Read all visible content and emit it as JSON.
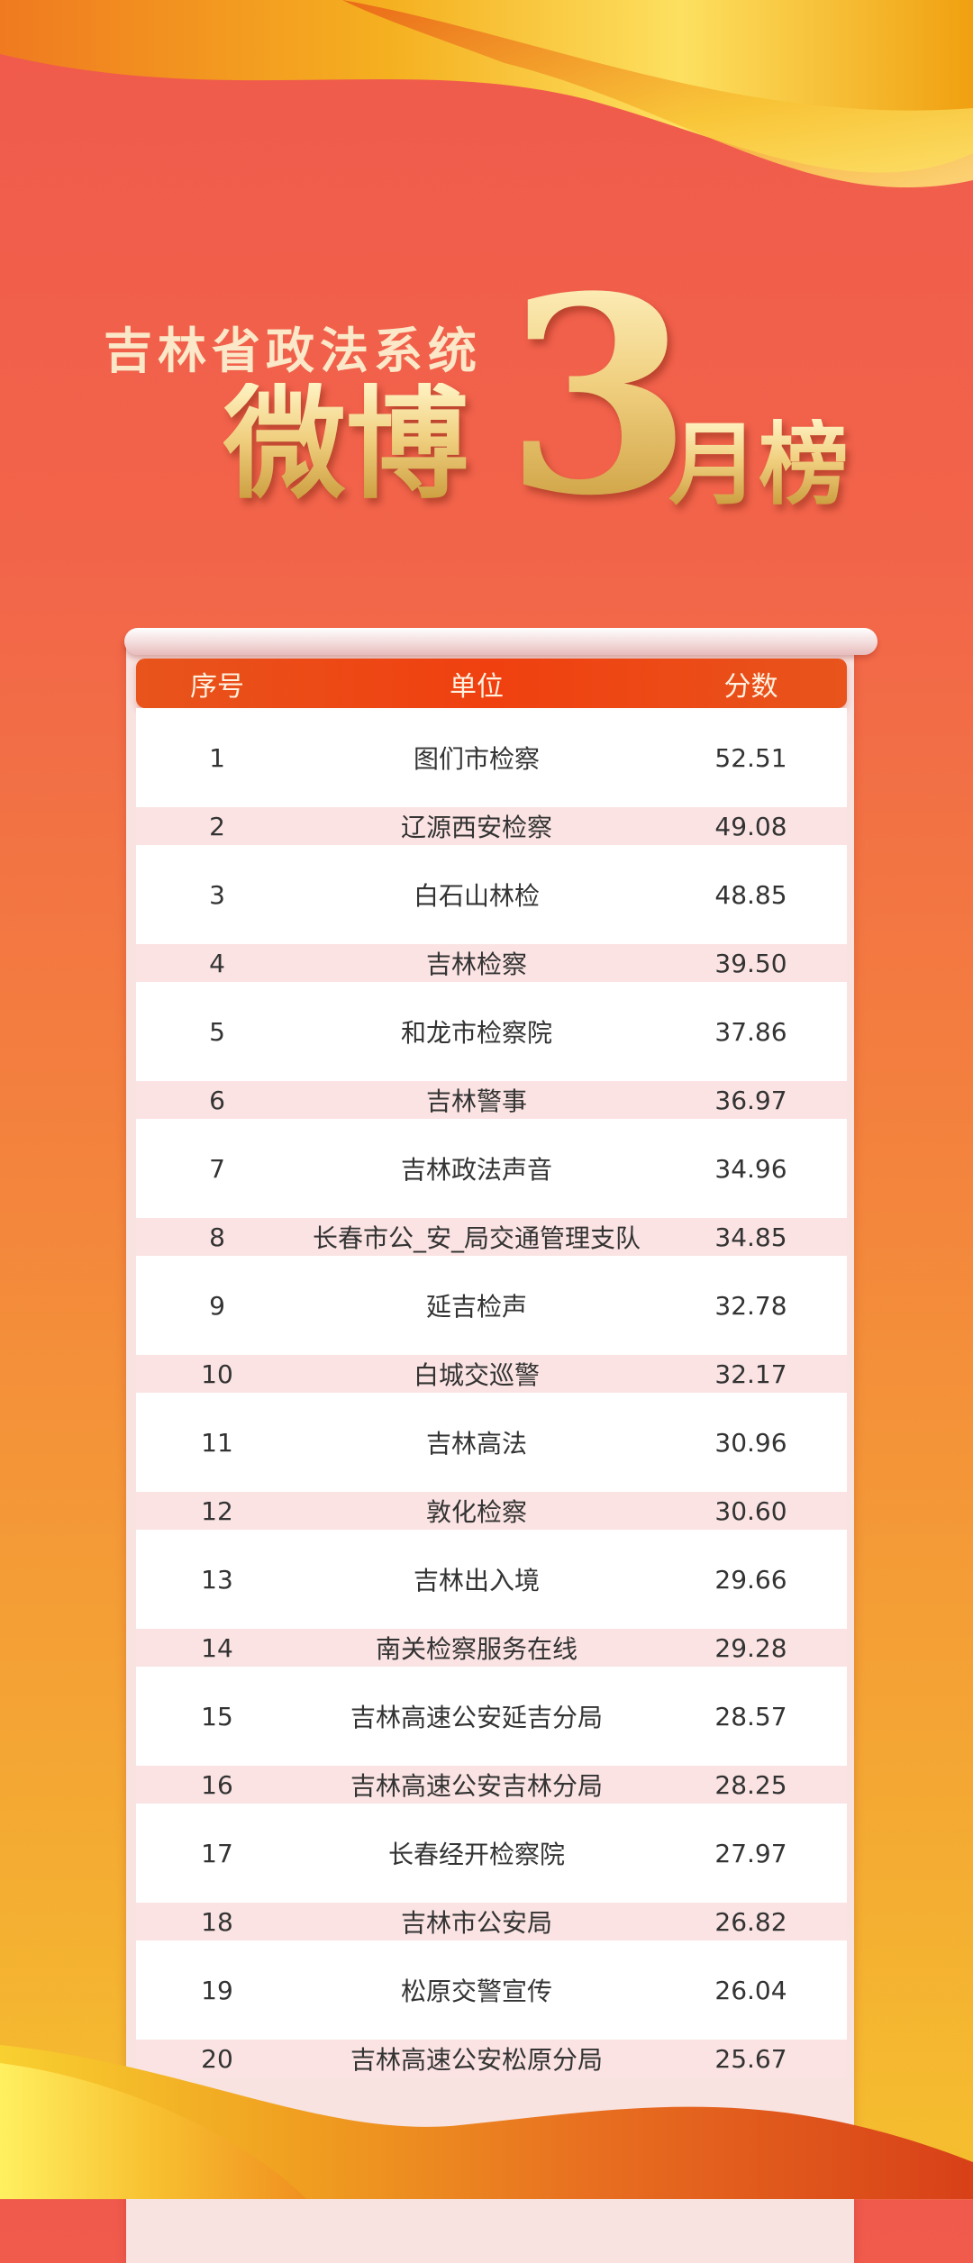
{
  "title": {
    "line1": "吉林省政法系统",
    "weibo": "微博",
    "number": "3",
    "month": "月榜"
  },
  "colors": {
    "header_bar": "#f04010",
    "stripe": "#fbe3e3",
    "gold": "#f0d080"
  },
  "table": {
    "headers": [
      "序号",
      "单位",
      "分数"
    ],
    "rows": [
      [
        "1",
        "图们市检察",
        "52.51"
      ],
      [
        "2",
        "辽源西安检察",
        "49.08"
      ],
      [
        "3",
        "白石山林检",
        "48.85"
      ],
      [
        "4",
        "吉林检察",
        "39.50"
      ],
      [
        "5",
        "和龙市检察院",
        "37.86"
      ],
      [
        "6",
        "吉林警事",
        "36.97"
      ],
      [
        "7",
        "吉林政法声音",
        "34.96"
      ],
      [
        "8",
        "长春市公_安_局交通管理支队",
        "34.85"
      ],
      [
        "9",
        "延吉检声",
        "32.78"
      ],
      [
        "10",
        "白城交巡警",
        "32.17"
      ],
      [
        "11",
        "吉林高法",
        "30.96"
      ],
      [
        "12",
        "敦化检察",
        "30.60"
      ],
      [
        "13",
        "吉林出入境",
        "29.66"
      ],
      [
        "14",
        "南关检察服务在线",
        "29.28"
      ],
      [
        "15",
        "吉林高速公安延吉分局",
        "28.57"
      ],
      [
        "16",
        "吉林高速公安吉林分局",
        "28.25"
      ],
      [
        "17",
        "长春经开检察院",
        "27.97"
      ],
      [
        "18",
        "吉林市公安局",
        "26.82"
      ],
      [
        "19",
        "松原交警宣传",
        "26.04"
      ],
      [
        "20",
        "吉林高速公安松原分局",
        "25.67"
      ]
    ]
  }
}
